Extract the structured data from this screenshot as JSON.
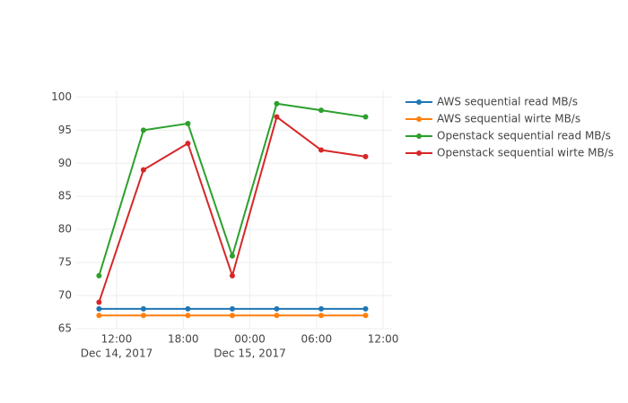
{
  "chart_data": {
    "type": "line",
    "x": [
      "2017-12-14T10:25",
      "2017-12-14T14:25",
      "2017-12-14T18:25",
      "2017-12-14T22:25",
      "2017-12-15T02:25",
      "2017-12-15T06:25",
      "2017-12-15T10:25"
    ],
    "series": [
      {
        "name": "AWS sequential read MB/s",
        "color": "#1f77b4",
        "values": [
          68,
          68,
          68,
          68,
          68,
          68,
          68
        ]
      },
      {
        "name": "AWS sequential wirte MB/s",
        "color": "#ff7f0e",
        "values": [
          67,
          67,
          67,
          67,
          67,
          67,
          67
        ]
      },
      {
        "name": "Openstack sequential read MB/s",
        "color": "#2ca02c",
        "values": [
          73,
          95,
          96,
          76,
          99,
          98,
          97
        ]
      },
      {
        "name": "Openstack sequential wirte MB/s",
        "color": "#d62728",
        "values": [
          69,
          89,
          93,
          73,
          97,
          92,
          91
        ]
      }
    ],
    "xlim": [
      "2017-12-14T08:22",
      "2017-12-15T12:48"
    ],
    "xticks": [
      {
        "value": "2017-12-14T12:00",
        "label": "12:00",
        "date": "Dec 14, 2017"
      },
      {
        "value": "2017-12-14T18:00",
        "label": "18:00"
      },
      {
        "value": "2017-12-15T00:00",
        "label": "00:00",
        "date": "Dec 15, 2017"
      },
      {
        "value": "2017-12-15T06:00",
        "label": "06:00"
      },
      {
        "value": "2017-12-15T12:00",
        "label": "12:00"
      }
    ],
    "ylim": [
      65,
      101
    ],
    "yticks": [
      65,
      70,
      75,
      80,
      85,
      90,
      95,
      100
    ],
    "grid": true,
    "legend": "right"
  }
}
